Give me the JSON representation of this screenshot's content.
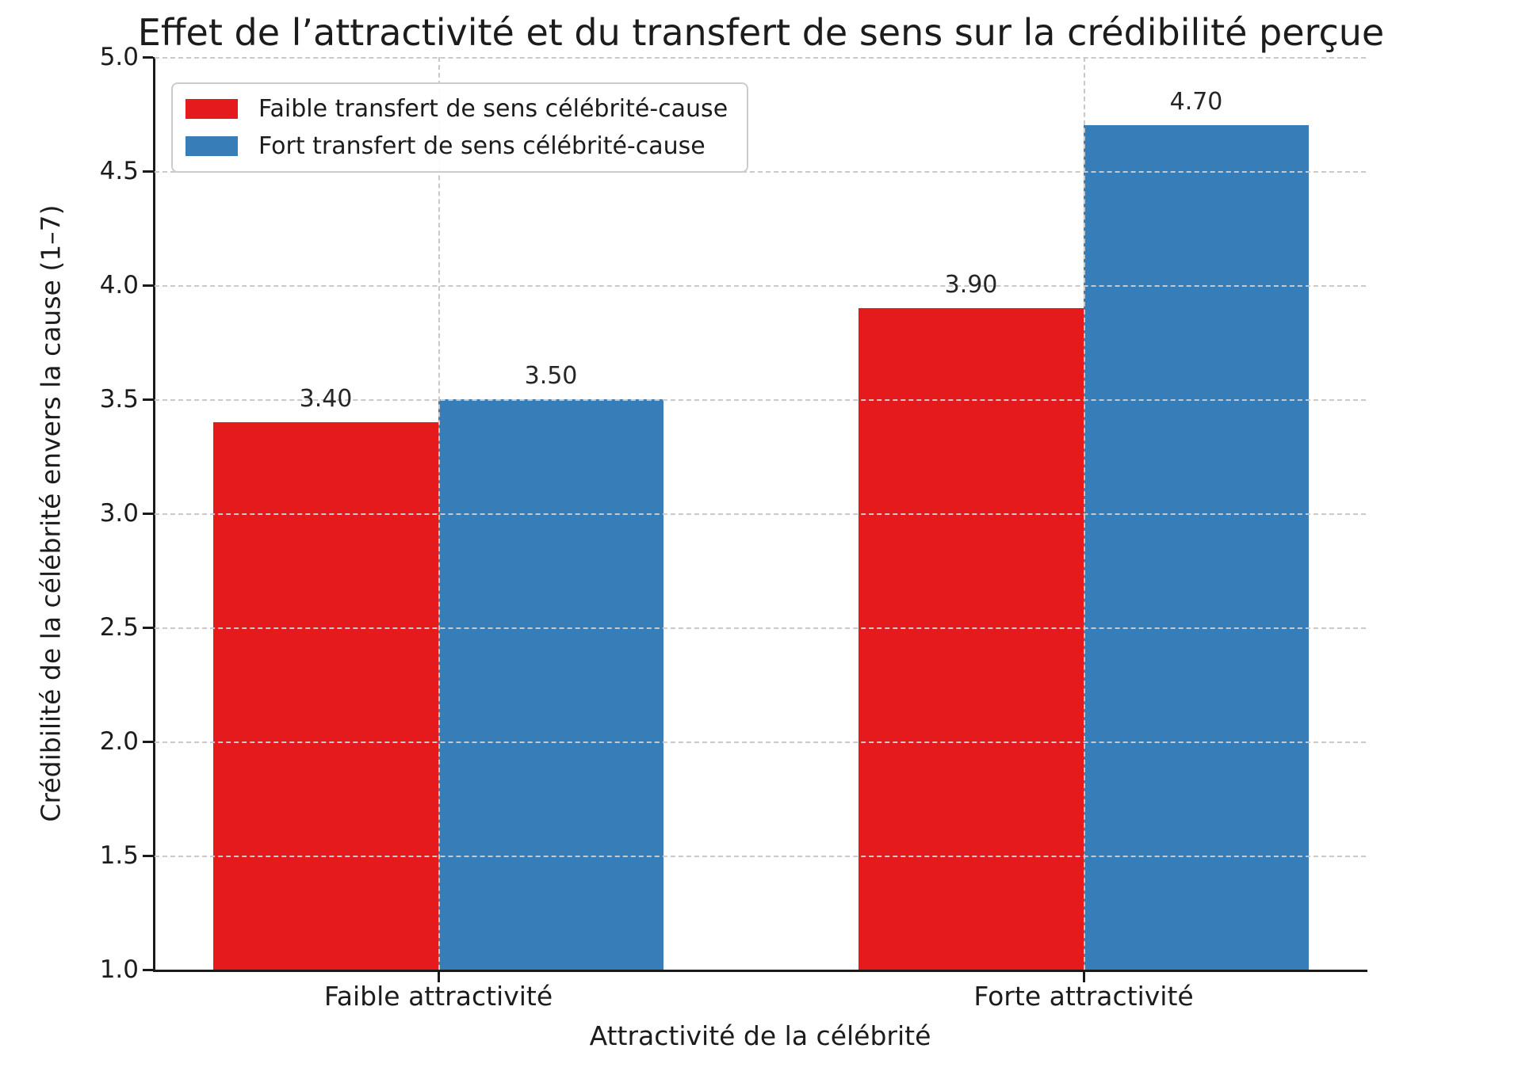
{
  "chart_data": {
    "type": "bar",
    "title": "Effet de l’attractivité et du transfert de sens sur la crédibilité perçue",
    "xlabel": "Attractivité de la célébrité",
    "ylabel": "Crédibilité de la célébrité envers la cause (1–7)",
    "categories": [
      "Faible attractivité",
      "Forte attractivité"
    ],
    "series": [
      {
        "name": "Faible transfert de sens célébrité-cause",
        "color": "#e41a1c",
        "values": [
          3.4,
          3.9
        ],
        "labels": [
          "3.40",
          "3.90"
        ]
      },
      {
        "name": "Fort transfert de sens célébrité-cause",
        "color": "#377eb8",
        "values": [
          3.5,
          4.7
        ],
        "labels": [
          "3.50",
          "4.70"
        ]
      }
    ],
    "ylim": [
      1.0,
      5.0
    ],
    "yticks": [
      "1.0",
      "1.5",
      "2.0",
      "2.5",
      "3.0",
      "3.5",
      "4.0",
      "4.5",
      "5.0"
    ],
    "grid": true,
    "legend_position": "upper-left",
    "background_color": "#ffffff",
    "grid_color": "#c9c9c9",
    "axis_color": "#1a1a1a"
  }
}
